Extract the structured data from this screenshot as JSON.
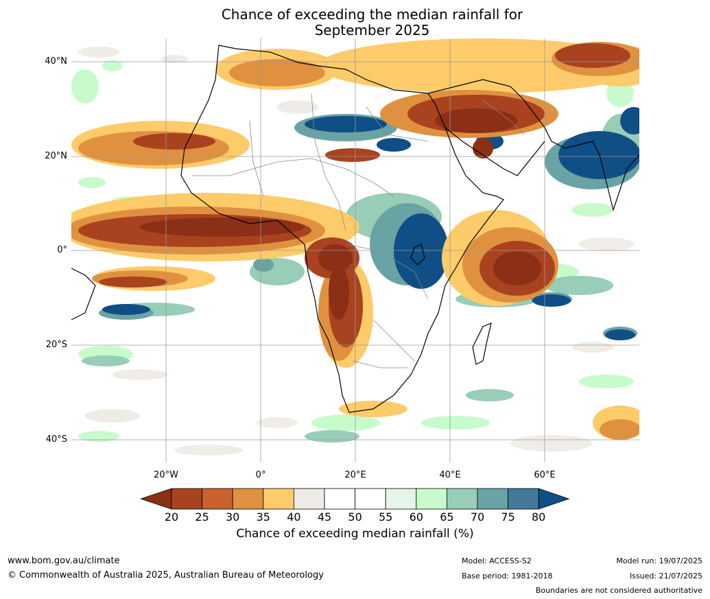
{
  "title_line1": "Chance of exceeding the median rainfall for",
  "title_line2": "September 2025",
  "lat_labels": [
    "40°N",
    "20°N",
    "0°",
    "20°S",
    "40°S"
  ],
  "lon_labels": [
    "20°W",
    "0°",
    "20°E",
    "40°E",
    "60°E"
  ],
  "colorbar": {
    "title": "Chance of exceeding median rainfall (%)",
    "ticks": [
      "20",
      "25",
      "30",
      "35",
      "40",
      "45",
      "50",
      "55",
      "60",
      "65",
      "70",
      "75",
      "80"
    ],
    "colors": {
      "below20": "#8b2f16",
      "b20_25": "#a9431f",
      "b25_30": "#c9622f",
      "b30_35": "#e0913f",
      "b35_40": "#fdcb6a",
      "b40_45": "#eeebe6",
      "b45_50": "#ffffff",
      "b50_55": "#ffffff",
      "b55_60": "#e5f5e8",
      "b60_65": "#c7fbcc",
      "b65_70": "#98cdb8",
      "b70_75": "#6aa3a3",
      "b75_80": "#44799a",
      "above80": "#104f85"
    }
  },
  "footer": {
    "website": "www.bom.gov.au/climate",
    "copyright": "© Commonwealth of Australia 2025, Australian Bureau of Meteorology",
    "model": "Model: ACCESS-S2",
    "base_period": "Base period: 1981-2018",
    "model_run": "Model run: 19/07/2025",
    "issued": "Issued: 21/07/2025",
    "disclaimer": "Boundaries are not considered authoritative"
  }
}
